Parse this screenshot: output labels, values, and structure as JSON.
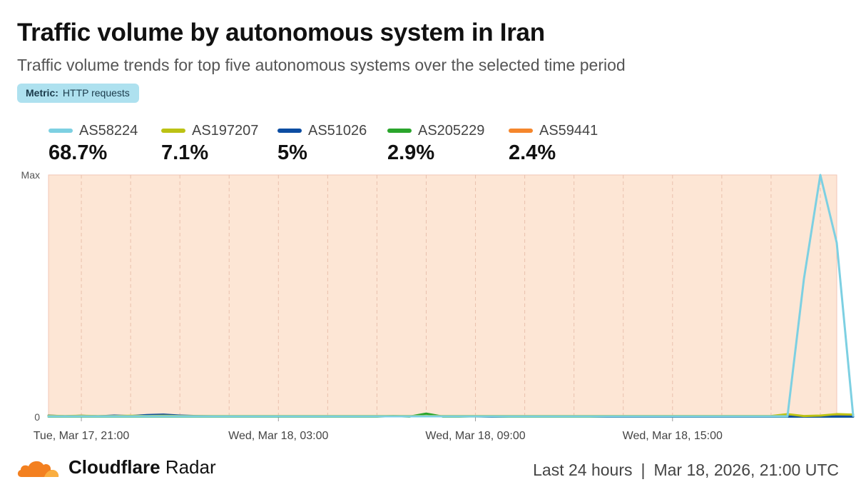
{
  "header": {
    "title": "Traffic volume by autonomous system in Iran",
    "subtitle": "Traffic volume trends for top five autonomous systems over the selected time period",
    "metric_label": "Metric:",
    "metric_value": "HTTP requests"
  },
  "legend": [
    {
      "name": "AS58224",
      "value": "68.7%",
      "color": "#7dd0e2"
    },
    {
      "name": "AS197207",
      "value": "7.1%",
      "color": "#bcc214"
    },
    {
      "name": "AS51026",
      "value": "5%",
      "color": "#0c4da2"
    },
    {
      "name": "AS205229",
      "value": "2.9%",
      "color": "#2aa52c"
    },
    {
      "name": "AS59441",
      "value": "2.4%",
      "color": "#f5862c"
    }
  ],
  "chart_data": {
    "type": "line",
    "title": "Traffic volume by autonomous system in Iran",
    "y_tick_labels": [
      "Max",
      "0"
    ],
    "ylim": [
      0,
      1
    ],
    "x_tick_labels": [
      "Tue, Mar 17, 21:00",
      "Wed, Mar 18, 03:00",
      "Wed, Mar 18, 09:00",
      "Wed, Mar 18, 15:00"
    ],
    "x_tick_positions": [
      2,
      14,
      26,
      38
    ],
    "xlim": [
      0,
      48
    ],
    "grid": true,
    "background_color": "#fde6d5",
    "series": [
      {
        "name": "AS58224",
        "color": "#7dd0e2",
        "values": [
          0.003,
          0.003,
          0.003,
          0.003,
          0.003,
          0.003,
          0.003,
          0.003,
          0.003,
          0.003,
          0.003,
          0.003,
          0.003,
          0.003,
          0.003,
          0.003,
          0.003,
          0.003,
          0.003,
          0.003,
          0.003,
          0.003,
          0.003,
          0.003,
          0.003,
          0.003,
          0.003,
          0.003,
          0.003,
          0.003,
          0.003,
          0.003,
          0.003,
          0.003,
          0.003,
          0.003,
          0.003,
          0.003,
          0.003,
          0.003,
          0.003,
          0.003,
          0.003,
          0.003,
          0.003,
          0.003,
          0.57,
          1.0,
          0.72,
          0.005
        ]
      },
      {
        "name": "AS197207",
        "color": "#bcc214",
        "values": [
          0.005,
          0.004,
          0.005,
          0.004,
          0.004,
          0.005,
          0.004,
          0.005,
          0.004,
          0.004,
          0.004,
          0.004,
          0.004,
          0.004,
          0.004,
          0.004,
          0.004,
          0.004,
          0.004,
          0.004,
          0.004,
          0.004,
          0.004,
          0.004,
          0.004,
          0.004,
          0.004,
          0.004,
          0.004,
          0.004,
          0.004,
          0.004,
          0.004,
          0.004,
          0.004,
          0.004,
          0.004,
          0.004,
          0.004,
          0.004,
          0.004,
          0.004,
          0.004,
          0.004,
          0.004,
          0.012,
          0.004,
          0.006,
          0.012,
          0.01
        ]
      },
      {
        "name": "AS51026",
        "color": "#0c4da2",
        "values": [
          0.006,
          0.003,
          0.005,
          0.003,
          0.006,
          0.004,
          0.008,
          0.01,
          0.006,
          0.004,
          0.003,
          0.003,
          0.003,
          0.003,
          0.003,
          0.003,
          0.003,
          0.003,
          0.003,
          0.003,
          0.003,
          0.003,
          0.003,
          0.003,
          0.003,
          0.003,
          0.003,
          0.002,
          0.003,
          0.003,
          0.003,
          0.003,
          0.003,
          0.003,
          0.002,
          0.002,
          0.002,
          0.002,
          0.002,
          0.002,
          0.002,
          0.002,
          0.002,
          0.002,
          0.002,
          0.002,
          0.002,
          0.002,
          0.002,
          0.002
        ]
      },
      {
        "name": "AS205229",
        "color": "#2aa52c",
        "values": [
          0.002,
          0.002,
          0.002,
          0.002,
          0.002,
          0.002,
          0.002,
          0.002,
          0.002,
          0.002,
          0.002,
          0.002,
          0.002,
          0.002,
          0.002,
          0.002,
          0.002,
          0.002,
          0.002,
          0.002,
          0.002,
          0.004,
          0.002,
          0.014,
          0.002,
          0.002,
          0.003,
          0.002,
          0.002,
          0.002,
          0.002,
          0.002,
          0.002,
          0.002,
          0.002,
          0.002,
          0.002,
          0.002,
          0.002,
          0.002,
          0.002,
          0.002,
          0.002,
          0.002,
          0.002,
          0.002,
          0.002,
          0.002,
          0.002,
          0.002
        ]
      },
      {
        "name": "AS59441",
        "color": "#f5862c",
        "values": [
          0.003,
          0.003,
          0.003,
          0.003,
          0.003,
          0.003,
          0.003,
          0.003,
          0.003,
          0.003,
          0.003,
          0.003,
          0.003,
          0.003,
          0.003,
          0.003,
          0.003,
          0.003,
          0.003,
          0.003,
          0.003,
          0.003,
          0.003,
          0.003,
          0.003,
          0.003,
          0.003,
          0.003,
          0.003,
          0.003,
          0.003,
          0.003,
          0.003,
          0.003,
          0.003,
          0.003,
          0.003,
          0.003,
          0.003,
          0.003,
          0.003,
          0.003,
          0.003,
          0.003,
          0.003,
          0.003,
          0.003,
          0.003,
          0.003,
          0.003
        ]
      }
    ]
  },
  "footer": {
    "brand_bold": "Cloudflare",
    "brand_light": "Radar",
    "range": "Last 24 hours",
    "separator": "|",
    "timestamp": "Mar 18, 2026, 21:00 UTC"
  }
}
